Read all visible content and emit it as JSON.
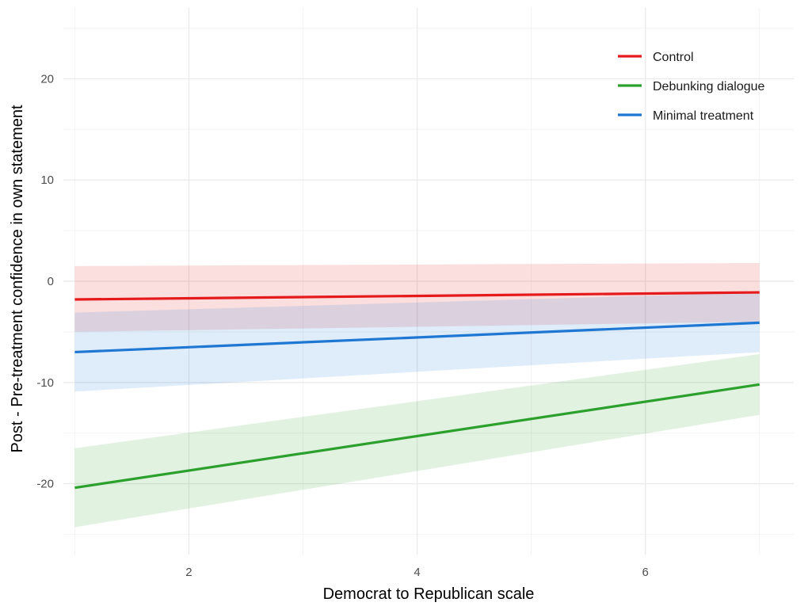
{
  "chart_data": {
    "type": "line",
    "xlabel": "Democrat to Republican scale",
    "ylabel": "Post - Pre-treatment confidence in own statement",
    "xlim": [
      0.9,
      7.3
    ],
    "ylim": [
      -27,
      27
    ],
    "x_ticks": [
      2,
      4,
      6
    ],
    "x_tick_labels": [
      "2",
      "4",
      "6"
    ],
    "x_minor_ticks": [
      1,
      3,
      5,
      7
    ],
    "y_ticks": [
      -20,
      -10,
      0,
      10,
      20
    ],
    "y_tick_labels": [
      "-20",
      "-10",
      "0",
      "10",
      "20"
    ],
    "y_minor_ticks": [
      -25,
      -15,
      -5,
      5,
      15,
      25
    ],
    "grid": true,
    "legend_position": "top-right",
    "x": [
      1,
      7
    ],
    "series": [
      {
        "name": "Control",
        "color": "#e41a1c",
        "values": [
          -1.8,
          -1.1
        ],
        "ci_lower": [
          -5.0,
          -4.0
        ],
        "ci_upper": [
          1.5,
          1.8
        ]
      },
      {
        "name": "Debunking dialogue",
        "color": "#2ca02c",
        "values": [
          -20.4,
          -10.2
        ],
        "ci_lower": [
          -24.3,
          -13.2
        ],
        "ci_upper": [
          -16.5,
          -7.2
        ]
      },
      {
        "name": "Minimal treatment",
        "color": "#1f77d4",
        "values": [
          -7.0,
          -4.1
        ],
        "ci_lower": [
          -10.9,
          -7.0
        ],
        "ci_upper": [
          -3.1,
          -1.1
        ]
      }
    ]
  }
}
